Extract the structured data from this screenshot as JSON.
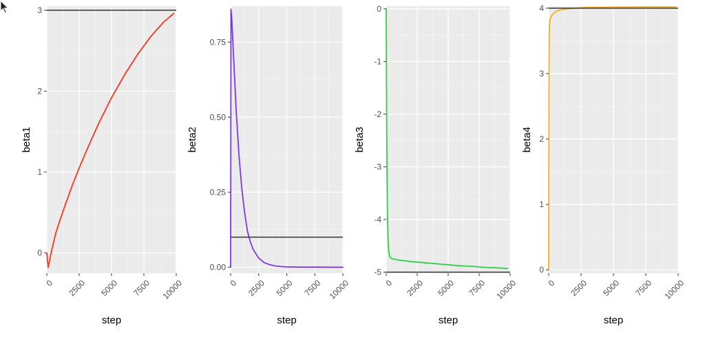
{
  "chart_data": [
    {
      "type": "line",
      "xlabel": "step",
      "ylabel": "beta1",
      "xlim": [
        0,
        10000
      ],
      "ylim": [
        -0.25,
        3.05
      ],
      "x_ticks": [
        0,
        2500,
        5000,
        7500,
        10000
      ],
      "x_tick_labels": [
        "0",
        "2500",
        "5000",
        "7500",
        "10000"
      ],
      "y_ticks": [
        0,
        1,
        2,
        3
      ],
      "y_tick_labels": [
        "0",
        "1",
        "2",
        "3"
      ],
      "hline": 3,
      "color": "#f8341d",
      "grid": true,
      "series": [
        {
          "x": [
            0,
            100,
            200,
            400,
            700,
            1000,
            1500,
            2000,
            2500,
            3000,
            4000,
            5000,
            6000,
            7000,
            8000,
            9000,
            9800
          ],
          "y": [
            0,
            -0.18,
            -0.1,
            0.05,
            0.25,
            0.4,
            0.63,
            0.85,
            1.05,
            1.24,
            1.6,
            1.92,
            2.2,
            2.45,
            2.67,
            2.85,
            2.96
          ]
        }
      ]
    },
    {
      "type": "line",
      "xlabel": "step",
      "ylabel": "beta2",
      "xlim": [
        0,
        10000
      ],
      "ylim": [
        -0.02,
        0.87
      ],
      "x_ticks": [
        0,
        2500,
        5000,
        7500,
        10000
      ],
      "x_tick_labels": [
        "0",
        "2500",
        "5000",
        "7500",
        "10000"
      ],
      "y_ticks": [
        0,
        0.25,
        0.5,
        0.75
      ],
      "y_tick_labels": [
        "0.00",
        "0.25",
        "0.50",
        "0.75"
      ],
      "hline": 0.1,
      "color": "#7b37e6",
      "grid": true,
      "series": [
        {
          "x": [
            0,
            30,
            100,
            250,
            500,
            750,
            1000,
            1250,
            1500,
            1750,
            2000,
            2500,
            3000,
            3500,
            4000,
            4500,
            5000,
            6000,
            7000,
            8000,
            9000,
            10000
          ],
          "y": [
            0,
            0.86,
            0.83,
            0.71,
            0.52,
            0.37,
            0.26,
            0.18,
            0.12,
            0.085,
            0.06,
            0.03,
            0.015,
            0.008,
            0.004,
            0.002,
            0.001,
            0.0005,
            0.0002,
            0.0001,
            0,
            0
          ]
        }
      ]
    },
    {
      "type": "line",
      "xlabel": "step",
      "ylabel": "beta3",
      "xlim": [
        0,
        10000
      ],
      "ylim": [
        -5.02,
        0.05
      ],
      "x_ticks": [
        0,
        2500,
        5000,
        7500,
        10000
      ],
      "x_tick_labels": [
        "0",
        "2500",
        "5000",
        "7500",
        "10000"
      ],
      "y_ticks": [
        0,
        -1,
        -2,
        -3,
        -4,
        -5
      ],
      "y_tick_labels": [
        "0",
        "-1",
        "-2",
        "-3",
        "-4",
        "-5"
      ],
      "hline": -5,
      "color": "#2fd046",
      "grid": true,
      "series": [
        {
          "x": [
            0,
            20,
            50,
            100,
            150,
            200,
            300,
            500,
            1000,
            2000,
            3000,
            4000,
            5000,
            6000,
            7000,
            8000,
            9000,
            9800
          ],
          "y": [
            0,
            -1.5,
            -2.8,
            -3.9,
            -4.4,
            -4.6,
            -4.72,
            -4.75,
            -4.77,
            -4.8,
            -4.82,
            -4.84,
            -4.86,
            -4.88,
            -4.89,
            -4.91,
            -4.92,
            -4.93
          ]
        }
      ]
    },
    {
      "type": "line",
      "xlabel": "step",
      "ylabel": "beta4",
      "xlim": [
        0,
        10000
      ],
      "ylim": [
        -0.05,
        4.03
      ],
      "x_ticks": [
        0,
        2500,
        5000,
        7500,
        10000
      ],
      "x_tick_labels": [
        "0",
        "2500",
        "5000",
        "7500",
        "10000"
      ],
      "y_ticks": [
        0,
        1,
        2,
        3,
        4
      ],
      "y_tick_labels": [
        "0",
        "1",
        "2",
        "3",
        "4"
      ],
      "hline": 4,
      "color": "#f5b21a",
      "grid": true,
      "series": [
        {
          "x": [
            0,
            20,
            50,
            100,
            200,
            400,
            700,
            1000,
            1500,
            2000,
            3000,
            5000,
            7000,
            9000,
            9800
          ],
          "y": [
            0,
            3.0,
            3.75,
            3.82,
            3.88,
            3.93,
            3.96,
            3.98,
            3.99,
            4.0,
            4.01,
            4.015,
            4.02,
            4.02,
            4.02
          ]
        }
      ]
    }
  ]
}
